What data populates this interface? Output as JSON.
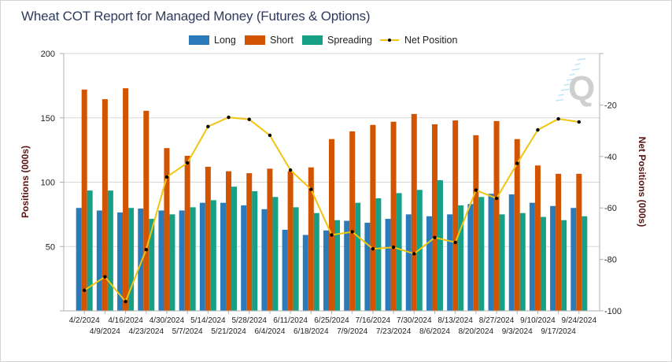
{
  "colors": {
    "long": "#2b7bba",
    "short": "#d35400",
    "spreading": "#17a085",
    "net": "#f1c40f",
    "net_marker": "#000000",
    "grid": "#d9d9d9",
    "axis": "#b0b0b0"
  },
  "watermark_logo_text": "Q",
  "chart_data": {
    "type": "bar",
    "title": "Wheat COT Report for Managed Money (Futures & Options)",
    "xlabel": "",
    "ylabel": "Positions (000s)",
    "y2label": "Net Positions (000s)",
    "ylim": [
      0,
      200
    ],
    "y2lim": [
      -100,
      0
    ],
    "yticks": [
      "50",
      "100",
      "150",
      "200"
    ],
    "y2ticks": [
      "-20",
      "-40",
      "-60",
      "-80",
      "-100"
    ],
    "grid": true,
    "legend_position": "top-center",
    "legend": [
      "Long",
      "Short",
      "Spreading",
      "Net Position"
    ],
    "categories": [
      "4/2/2024",
      "4/9/2024",
      "4/16/2024",
      "4/23/2024",
      "4/30/2024",
      "5/7/2024",
      "5/14/2024",
      "5/21/2024",
      "5/28/2024",
      "6/4/2024",
      "6/11/2024",
      "6/18/2024",
      "6/25/2024",
      "7/9/2024",
      "7/16/2024",
      "7/23/2024",
      "7/30/2024",
      "8/6/2024",
      "8/13/2024",
      "8/20/2024",
      "8/27/2024",
      "9/3/2024",
      "9/10/2024",
      "9/17/2024",
      "9/24/2024"
    ],
    "series": [
      {
        "name": "Long",
        "type": "bar",
        "axis": "left",
        "values": [
          80,
          78,
          76.5,
          79.5,
          78,
          78,
          84,
          84,
          82,
          79,
          63,
          59,
          62.5,
          70,
          68.5,
          71.5,
          75,
          73.5,
          75,
          83,
          91,
          90.5,
          84,
          81.5,
          80
        ]
      },
      {
        "name": "Short",
        "type": "bar",
        "axis": "left",
        "values": [
          172,
          164.5,
          173,
          155.5,
          126.5,
          120.5,
          112,
          108.5,
          107,
          110.5,
          108.5,
          111.5,
          133.5,
          139.5,
          144.5,
          147,
          153,
          145,
          148,
          136.5,
          147.5,
          133.5,
          113,
          106.5,
          106.5
        ]
      },
      {
        "name": "Spreading",
        "type": "bar",
        "axis": "left",
        "values": [
          93.5,
          93.5,
          80,
          71.5,
          75,
          80.5,
          86,
          96.5,
          93,
          88.5,
          80.5,
          76,
          70.5,
          84,
          87.5,
          91.5,
          94,
          101.5,
          82,
          88.5,
          75,
          76,
          73,
          70.5,
          73.5
        ]
      },
      {
        "name": "Net Position",
        "type": "line",
        "axis": "right",
        "values": [
          -92,
          -86.8,
          -96.4,
          -76.2,
          -48,
          -42.5,
          -28.4,
          -24.8,
          -25.6,
          -31.8,
          -45.3,
          -52.8,
          -70.5,
          -69.3,
          -75.9,
          -75.3,
          -77.8,
          -71.5,
          -73.4,
          -53.1,
          -56.3,
          -42.7,
          -29.7,
          -25.4,
          -26.6
        ]
      }
    ]
  }
}
